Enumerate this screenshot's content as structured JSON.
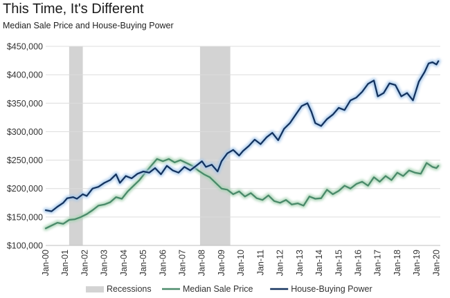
{
  "chart_data": {
    "type": "line",
    "title": "This Time, It's Different",
    "subtitle": "Median Sale Price and House-Buying Power",
    "xlabel": "",
    "ylabel": "",
    "ylim": [
      100000,
      450000
    ],
    "y_ticks": [
      "$100,000",
      "$150,000",
      "$200,000",
      "$250,000",
      "$300,000",
      "$350,000",
      "$400,000",
      "$450,000"
    ],
    "x_ticks": [
      "Jan-00",
      "Jan-01",
      "Jan-02",
      "Jan-03",
      "Jan-04",
      "Jan-05",
      "Jan-06",
      "Jan-07",
      "Jan-08",
      "Jan-09",
      "Jan-10",
      "Jan-11",
      "Jan-12",
      "Jan-13",
      "Jan-14",
      "Jan-15",
      "Jan-16",
      "Jan-17",
      "Jan-18",
      "Jan-19",
      "Jan-20"
    ],
    "grid": true,
    "legend_position": "bottom",
    "recessions": [
      {
        "start": 2001.2,
        "end": 2001.9
      },
      {
        "start": 2007.9,
        "end": 2009.45
      }
    ],
    "series": [
      {
        "name": "Median Sale Price",
        "color": "#4a8a6a",
        "glow": "#a8d3b4",
        "points": [
          [
            2000.0,
            130000
          ],
          [
            2000.3,
            135000
          ],
          [
            2000.6,
            140000
          ],
          [
            2000.9,
            138000
          ],
          [
            2001.2,
            145000
          ],
          [
            2001.5,
            146000
          ],
          [
            2001.8,
            150000
          ],
          [
            2002.1,
            155000
          ],
          [
            2002.4,
            162000
          ],
          [
            2002.7,
            170000
          ],
          [
            2003.0,
            172000
          ],
          [
            2003.3,
            176000
          ],
          [
            2003.6,
            185000
          ],
          [
            2003.9,
            182000
          ],
          [
            2004.2,
            195000
          ],
          [
            2004.5,
            205000
          ],
          [
            2004.8,
            215000
          ],
          [
            2005.1,
            228000
          ],
          [
            2005.4,
            240000
          ],
          [
            2005.7,
            252000
          ],
          [
            2006.0,
            248000
          ],
          [
            2006.3,
            252000
          ],
          [
            2006.6,
            246000
          ],
          [
            2006.9,
            250000
          ],
          [
            2007.2,
            245000
          ],
          [
            2007.5,
            240000
          ],
          [
            2007.8,
            232000
          ],
          [
            2008.1,
            225000
          ],
          [
            2008.4,
            220000
          ],
          [
            2008.7,
            210000
          ],
          [
            2009.0,
            200000
          ],
          [
            2009.3,
            198000
          ],
          [
            2009.6,
            190000
          ],
          [
            2009.9,
            195000
          ],
          [
            2010.2,
            186000
          ],
          [
            2010.5,
            192000
          ],
          [
            2010.8,
            183000
          ],
          [
            2011.1,
            180000
          ],
          [
            2011.4,
            188000
          ],
          [
            2011.7,
            178000
          ],
          [
            2012.0,
            175000
          ],
          [
            2012.3,
            180000
          ],
          [
            2012.6,
            172000
          ],
          [
            2012.9,
            174000
          ],
          [
            2013.2,
            170000
          ],
          [
            2013.5,
            186000
          ],
          [
            2013.8,
            182000
          ],
          [
            2014.1,
            183000
          ],
          [
            2014.4,
            198000
          ],
          [
            2014.7,
            190000
          ],
          [
            2015.0,
            196000
          ],
          [
            2015.3,
            205000
          ],
          [
            2015.6,
            200000
          ],
          [
            2015.9,
            208000
          ],
          [
            2016.2,
            212000
          ],
          [
            2016.5,
            205000
          ],
          [
            2016.8,
            220000
          ],
          [
            2017.1,
            212000
          ],
          [
            2017.4,
            222000
          ],
          [
            2017.7,
            215000
          ],
          [
            2018.0,
            228000
          ],
          [
            2018.3,
            222000
          ],
          [
            2018.6,
            232000
          ],
          [
            2018.9,
            228000
          ],
          [
            2019.2,
            226000
          ],
          [
            2019.5,
            245000
          ],
          [
            2019.8,
            238000
          ],
          [
            2020.0,
            236000
          ],
          [
            2020.1,
            240000
          ]
        ]
      },
      {
        "name": "House-Buying Power",
        "color": "#13325e",
        "glow": "#a5c7ea",
        "points": [
          [
            2000.0,
            162000
          ],
          [
            2000.3,
            160000
          ],
          [
            2000.6,
            168000
          ],
          [
            2000.9,
            175000
          ],
          [
            2001.1,
            183000
          ],
          [
            2001.4,
            185000
          ],
          [
            2001.6,
            182000
          ],
          [
            2001.9,
            190000
          ],
          [
            2002.1,
            187000
          ],
          [
            2002.4,
            200000
          ],
          [
            2002.7,
            203000
          ],
          [
            2003.0,
            210000
          ],
          [
            2003.3,
            215000
          ],
          [
            2003.6,
            225000
          ],
          [
            2003.8,
            210000
          ],
          [
            2004.1,
            222000
          ],
          [
            2004.4,
            218000
          ],
          [
            2004.7,
            226000
          ],
          [
            2005.0,
            230000
          ],
          [
            2005.3,
            228000
          ],
          [
            2005.6,
            236000
          ],
          [
            2005.9,
            225000
          ],
          [
            2006.2,
            240000
          ],
          [
            2006.5,
            232000
          ],
          [
            2006.8,
            228000
          ],
          [
            2007.1,
            238000
          ],
          [
            2007.4,
            232000
          ],
          [
            2007.7,
            240000
          ],
          [
            2008.0,
            248000
          ],
          [
            2008.2,
            238000
          ],
          [
            2008.5,
            242000
          ],
          [
            2008.8,
            230000
          ],
          [
            2009.0,
            248000
          ],
          [
            2009.3,
            262000
          ],
          [
            2009.6,
            268000
          ],
          [
            2009.9,
            258000
          ],
          [
            2010.1,
            266000
          ],
          [
            2010.4,
            275000
          ],
          [
            2010.7,
            286000
          ],
          [
            2011.0,
            278000
          ],
          [
            2011.3,
            290000
          ],
          [
            2011.6,
            298000
          ],
          [
            2011.9,
            285000
          ],
          [
            2012.2,
            305000
          ],
          [
            2012.5,
            315000
          ],
          [
            2012.8,
            330000
          ],
          [
            2013.1,
            345000
          ],
          [
            2013.4,
            350000
          ],
          [
            2013.6,
            335000
          ],
          [
            2013.8,
            315000
          ],
          [
            2014.1,
            310000
          ],
          [
            2014.4,
            322000
          ],
          [
            2014.7,
            330000
          ],
          [
            2015.0,
            342000
          ],
          [
            2015.3,
            338000
          ],
          [
            2015.6,
            355000
          ],
          [
            2015.9,
            360000
          ],
          [
            2016.2,
            370000
          ],
          [
            2016.5,
            384000
          ],
          [
            2016.8,
            390000
          ],
          [
            2017.0,
            362000
          ],
          [
            2017.3,
            368000
          ],
          [
            2017.6,
            385000
          ],
          [
            2017.9,
            382000
          ],
          [
            2018.2,
            362000
          ],
          [
            2018.5,
            368000
          ],
          [
            2018.8,
            355000
          ],
          [
            2019.1,
            388000
          ],
          [
            2019.4,
            405000
          ],
          [
            2019.6,
            420000
          ],
          [
            2019.8,
            422000
          ],
          [
            2020.0,
            418000
          ],
          [
            2020.1,
            424000
          ]
        ]
      }
    ],
    "legend": [
      {
        "label": "Recessions",
        "kind": "box",
        "color": "#d3d3d3"
      },
      {
        "label": "Median Sale Price",
        "kind": "line",
        "color": "#4a8a6a"
      },
      {
        "label": "House-Buying Power",
        "kind": "line",
        "color": "#13325e"
      }
    ]
  }
}
